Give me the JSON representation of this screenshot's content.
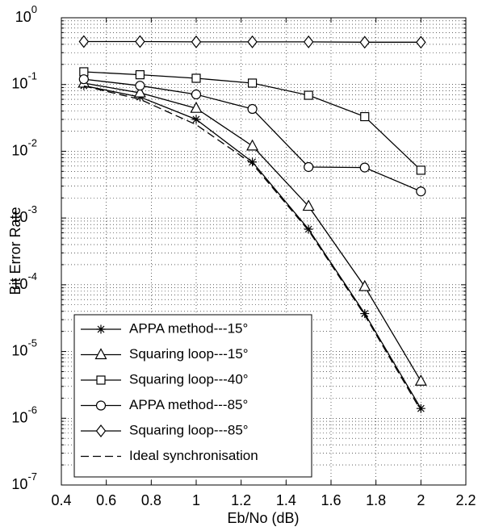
{
  "chart_data": {
    "type": "line",
    "xlabel": "Eb/No (dB)",
    "ylabel": "Bit Error Rate",
    "yscale": "log",
    "grid": true,
    "legend": "lower left",
    "xlim": [
      0.4,
      2.2
    ],
    "xticks": [
      0.4,
      0.6,
      0.8,
      1,
      1.2,
      1.4,
      1.6,
      1.8,
      2,
      2.2
    ],
    "ylim": [
      1e-07,
      1
    ],
    "yticks": [
      {
        "value": 1e-07,
        "label": "10^-7"
      },
      {
        "value": 1e-06,
        "label": "10^-6"
      },
      {
        "value": 1e-05,
        "label": "10^-5"
      },
      {
        "value": 0.0001,
        "label": "10^-4"
      },
      {
        "value": 0.001,
        "label": "10^-3"
      },
      {
        "value": 0.01,
        "label": "10^-2"
      },
      {
        "value": 0.1,
        "label": "10^-1"
      },
      {
        "value": 1,
        "label": "10^0"
      }
    ],
    "x": [
      0.5,
      0.75,
      1,
      1.25,
      1.5,
      1.75,
      2
    ],
    "series": [
      {
        "name": "APPA method---15°",
        "color": "#000000",
        "marker": "star",
        "dash": "solid",
        "values": [
          0.096,
          0.065,
          0.03,
          0.0069,
          0.00068,
          3.7e-05,
          1.4e-06
        ]
      },
      {
        "name": "Squaring loop---15°",
        "color": "#000000",
        "marker": "triangle",
        "dash": "solid",
        "values": [
          0.105,
          0.075,
          0.044,
          0.012,
          0.0015,
          9.4e-05,
          3.6e-06
        ]
      },
      {
        "name": "Squaring loop---40°",
        "color": "#000000",
        "marker": "square",
        "dash": "solid",
        "values": [
          0.155,
          0.14,
          0.124,
          0.105,
          0.069,
          0.033,
          0.0052
        ]
      },
      {
        "name": "APPA method---85°",
        "color": "#000000",
        "marker": "circle",
        "dash": "solid",
        "values": [
          0.12,
          0.096,
          0.071,
          0.043,
          0.0058,
          0.0057,
          0.0025
        ]
      },
      {
        "name": "Squaring loop---85°",
        "color": "#000000",
        "marker": "diamond",
        "dash": "solid",
        "values": [
          0.44,
          0.44,
          0.435,
          0.435,
          0.435,
          0.43,
          0.43
        ]
      },
      {
        "name": "Ideal synchronisation",
        "color": "#000000",
        "marker": "none",
        "dash": "dashed",
        "values": [
          0.095,
          0.06,
          0.025,
          0.0065,
          0.00065,
          3.5e-05,
          1.3e-06
        ]
      }
    ]
  }
}
